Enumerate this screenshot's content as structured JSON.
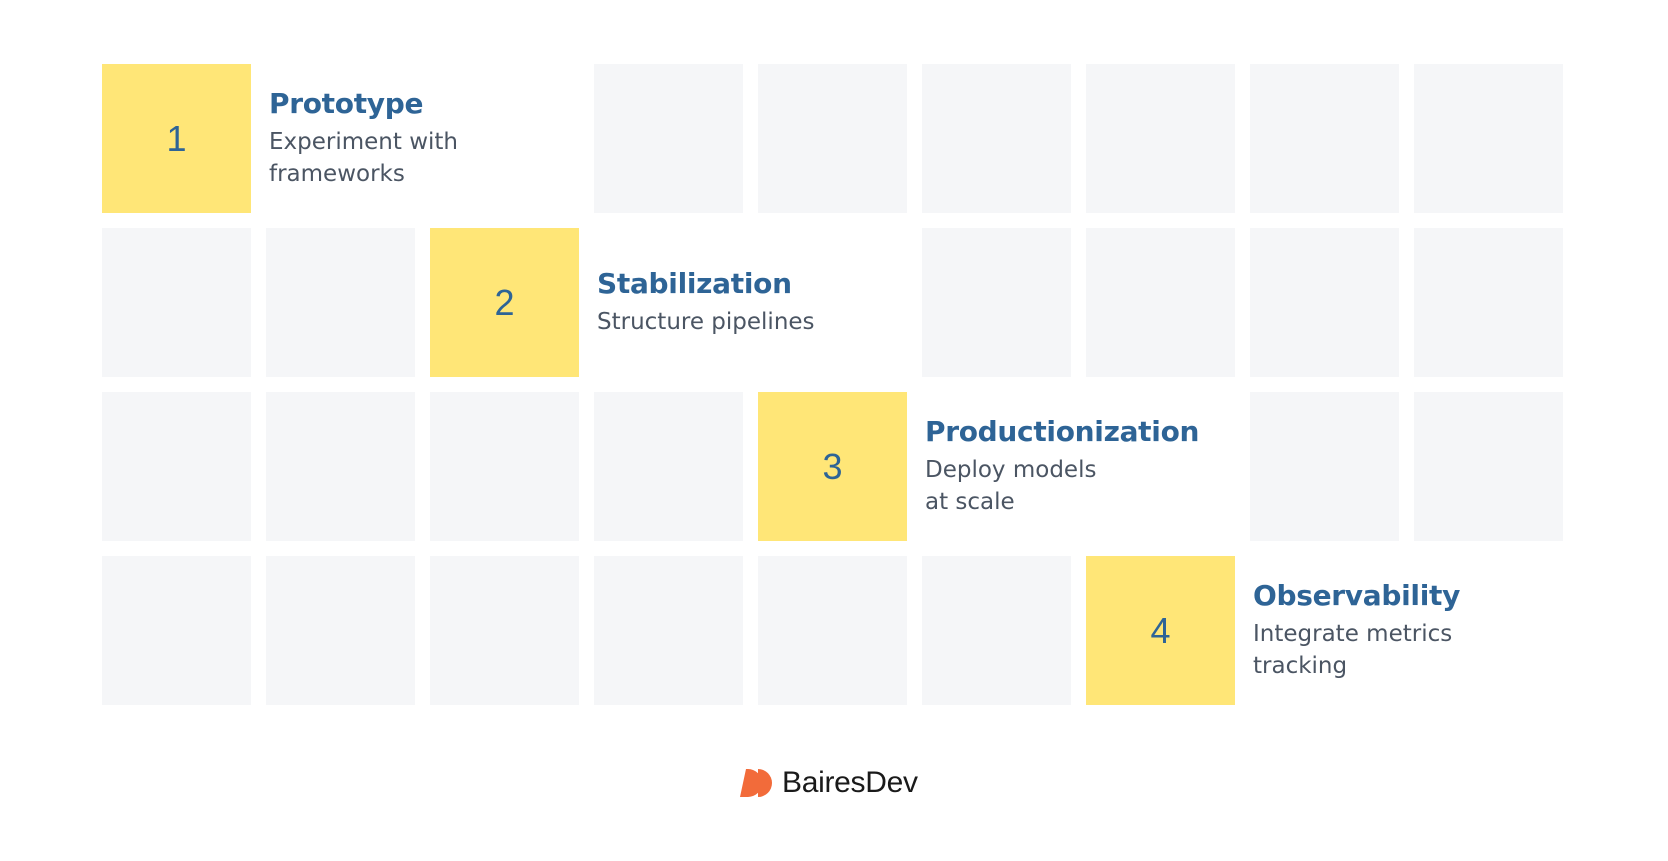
{
  "colors": {
    "highlight": "#FFE677",
    "empty": "#F5F6F8",
    "title": "#2E6496",
    "description": "#4B5563",
    "brand": "#F26B3A"
  },
  "steps": [
    {
      "number": "1",
      "title": "Prototype",
      "description": "Experiment with\nframeworks"
    },
    {
      "number": "2",
      "title": "Stabilization",
      "description": "Structure pipelines"
    },
    {
      "number": "3",
      "title": "Productionization",
      "description": "Deploy models\nat scale"
    },
    {
      "number": "4",
      "title": "Observability",
      "description": "Integrate metrics\ntracking"
    }
  ],
  "logo": {
    "text": "BairesDev"
  }
}
